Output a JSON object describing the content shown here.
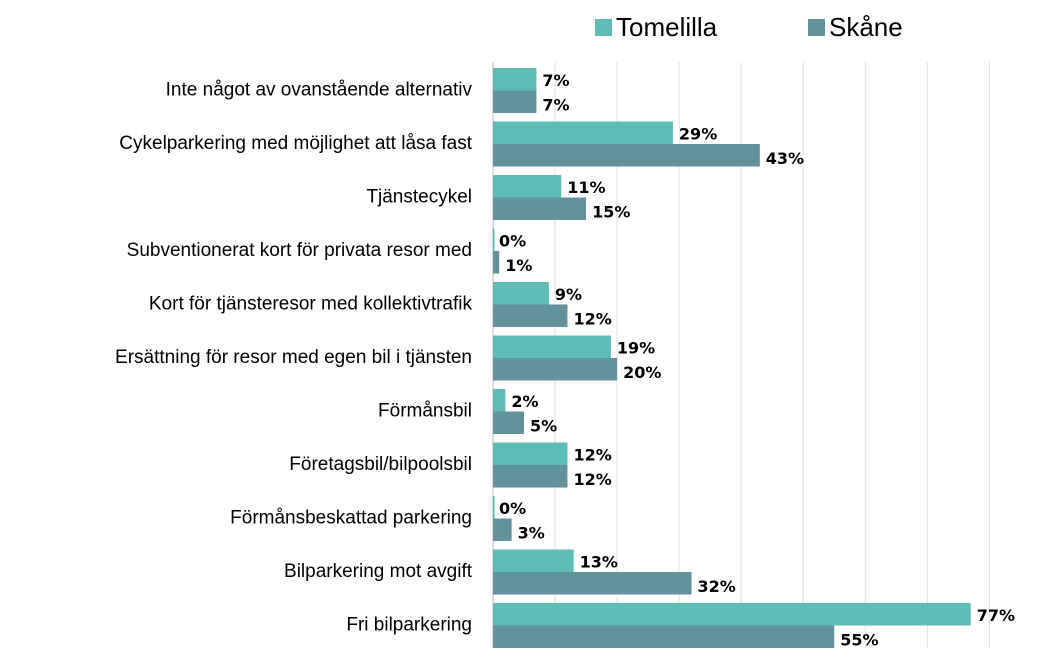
{
  "chart_data": {
    "type": "bar",
    "orientation": "horizontal",
    "categories": [
      "Inte något av ovanstående alternativ",
      "Cykelparkering med möjlighet att låsa fast",
      "Tjänstecykel",
      "Subventionerat kort för privata resor med",
      "Kort för tjänsteresor med kollektivtrafik",
      "Ersättning för resor med egen bil i tjänsten",
      "Förmånsbil",
      "Företagsbil/bilpoolsbil",
      "Förmånsbeskattad parkering",
      "Bilparkering mot avgift",
      "Fri bilparkering"
    ],
    "series": [
      {
        "name": "Tomelilla",
        "color": "#5dbcb5",
        "values": [
          7,
          29,
          11,
          0,
          9,
          19,
          2,
          12,
          0,
          13,
          77
        ],
        "value_labels": [
          "7%",
          "29%",
          "11%",
          "0%",
          "9%",
          "19%",
          "2%",
          "12%",
          "0%",
          "13%",
          "77%"
        ]
      },
      {
        "name": "Skåne",
        "color": "#62939d",
        "values": [
          7,
          43,
          15,
          1,
          12,
          20,
          5,
          12,
          3,
          32,
          55
        ],
        "value_labels": [
          "7%",
          "43%",
          "15%",
          "1%",
          "12%",
          "20%",
          "5%",
          "12%",
          "3%",
          "32%",
          "55%"
        ]
      }
    ],
    "xlim": [
      0,
      88
    ],
    "xticks": [
      0,
      10,
      20,
      30,
      40,
      50,
      60,
      70,
      80
    ],
    "grid": true,
    "legend": "top"
  }
}
